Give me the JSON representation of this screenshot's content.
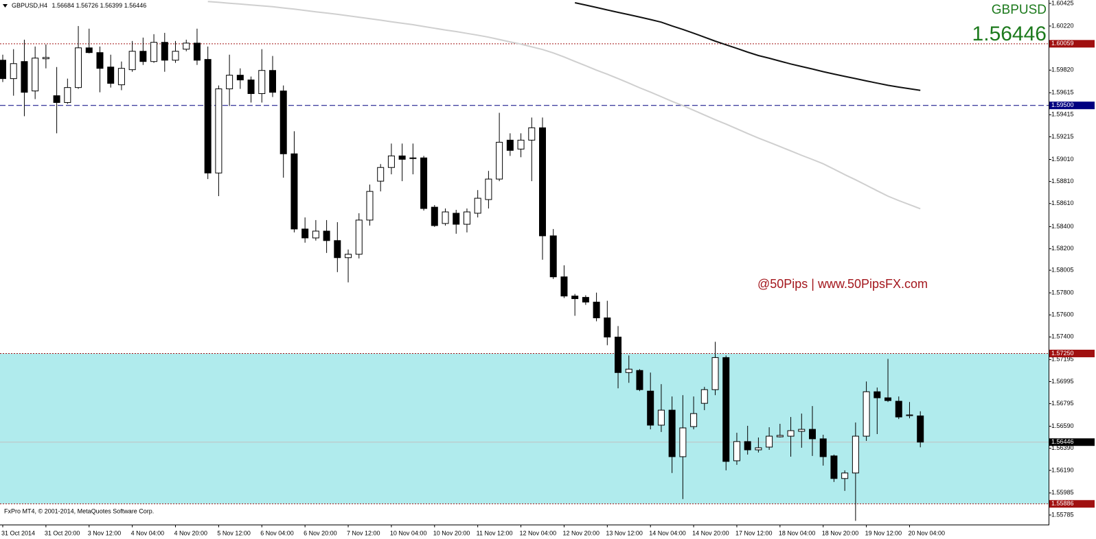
{
  "chart_data": {
    "type": "candlestick",
    "header": "GBPUSD,H4",
    "symbol": "GBPUSD",
    "annotation": "@50Pips | www.50PipsFX.com",
    "footer": "FxPro MT4, © 2001-2014, MetaQuotes Software Corp.",
    "categories": [
      "31 Oct 2014",
      null,
      null,
      null,
      "31 Oct 20:00",
      null,
      null,
      null,
      "3 Nov 12:00",
      null,
      null,
      null,
      "4 Nov 04:00",
      null,
      null,
      null,
      "4 Nov 20:00",
      null,
      null,
      null,
      "5 Nov 12:00",
      null,
      null,
      null,
      "6 Nov 04:00",
      null,
      null,
      null,
      "6 Nov 20:00",
      null,
      null,
      null,
      "7 Nov 12:00",
      null,
      null,
      null,
      "10 Nov 04:00",
      null,
      null,
      null,
      "10 Nov 20:00",
      null,
      null,
      null,
      "11 Nov 12:00",
      null,
      null,
      null,
      "12 Nov 04:00",
      null,
      null,
      null,
      "12 Nov 20:00",
      null,
      null,
      null,
      "13 Nov 12:00",
      null,
      null,
      null,
      "14 Nov 04:00",
      null,
      null,
      null,
      "14 Nov 20:00",
      null,
      null,
      null,
      "17 Nov 12:00",
      null,
      null,
      null,
      "18 Nov 04:00",
      null,
      null,
      null,
      "18 Nov 20:00",
      null,
      null,
      null,
      "19 Nov 12:00",
      null,
      null,
      null,
      "20 Nov 04:00",
      null
    ],
    "open": [
      1.5991,
      1.59743,
      1.59898,
      1.59631,
      1.59923,
      1.59588,
      1.59526,
      1.59662,
      1.60022,
      1.59979,
      1.59848,
      1.59687,
      1.59824,
      1.59991,
      1.59898,
      1.60072,
      1.5991,
      1.6001,
      1.60065,
      1.59917,
      1.58887,
      1.5965,
      1.59774,
      1.59731,
      1.59607,
      1.59817,
      1.59631,
      1.59061,
      1.58379,
      1.58298,
      1.5836,
      1.58274,
      1.58119,
      1.5815,
      1.5846,
      1.58813,
      1.58937,
      1.59042,
      1.59018,
      1.59024,
      1.58577,
      1.58429,
      1.58522,
      1.58422,
      1.58522,
      1.58646,
      1.58832,
      1.59185,
      1.59104,
      1.59185,
      1.59297,
      1.58317,
      1.57945,
      1.57771,
      1.57759,
      1.57716,
      1.57573,
      1.57399,
      1.57077,
      1.57096,
      1.56909,
      1.566,
      1.56736,
      1.56314,
      1.56587,
      1.56798,
      1.56922,
      1.57213,
      1.56277,
      1.56451,
      1.56376,
      1.56401,
      1.56494,
      1.565,
      1.56544,
      1.56562,
      1.56476,
      1.56321,
      1.56116,
      1.56166,
      1.565,
      1.56903,
      1.56848,
      1.56817,
      1.56686,
      1.56684
    ],
    "high": [
      1.5996,
      1.6001,
      1.60096,
      1.60034,
      1.60053,
      1.59848,
      1.59743,
      1.6022,
      1.60196,
      1.60034,
      1.5996,
      1.59898,
      1.60084,
      1.60115,
      1.60146,
      1.60158,
      1.60084,
      1.60096,
      1.60196,
      1.60034,
      1.59681,
      1.5996,
      1.59836,
      1.59762,
      1.6001,
      1.59948,
      1.59681,
      1.59266,
      1.58484,
      1.5846,
      1.5846,
      1.58441,
      1.58193,
      1.58522,
      1.58782,
      1.58968,
      1.59154,
      1.59154,
      1.59154,
      1.59042,
      1.58596,
      1.58565,
      1.58553,
      1.58565,
      1.58732,
      1.58906,
      1.59433,
      1.59247,
      1.59247,
      1.5939,
      1.5939,
      1.58379,
      1.5805,
      1.5779,
      1.57778,
      1.57802,
      1.57728,
      1.57499,
      1.57232,
      1.57108,
      1.57077,
      1.56972,
      1.5686,
      1.56872,
      1.5686,
      1.56947,
      1.57356,
      1.57232,
      1.56531,
      1.56594,
      1.56488,
      1.56581,
      1.56612,
      1.56674,
      1.56705,
      1.56773,
      1.56513,
      1.56333,
      1.5619,
      1.56624,
      1.56996,
      1.56941,
      1.57201,
      1.5686,
      1.5681,
      1.56726
    ],
    "low": [
      1.59712,
      1.59588,
      1.59402,
      1.59557,
      1.59836,
      1.59247,
      1.59514,
      1.5965,
      1.59972,
      1.59619,
      1.59662,
      1.59638,
      1.59805,
      1.59867,
      1.59886,
      1.59805,
      1.59886,
      1.59991,
      1.59867,
      1.58832,
      1.58677,
      1.59495,
      1.5965,
      1.59526,
      1.59526,
      1.59576,
      1.58844,
      1.58348,
      1.58255,
      1.58274,
      1.58162,
      1.57988,
      1.57895,
      1.58112,
      1.5841,
      1.5872,
      1.58875,
      1.58813,
      1.58875,
      1.58546,
      1.58398,
      1.5841,
      1.58336,
      1.58348,
      1.58484,
      1.58565,
      1.58813,
      1.59042,
      1.5903,
      1.58813,
      1.581,
      1.57926,
      1.57753,
      1.57592,
      1.57691,
      1.57542,
      1.57325,
      1.56934,
      1.56984,
      1.56909,
      1.56562,
      1.56538,
      1.56166,
      1.5593,
      1.56562,
      1.56736,
      1.56872,
      1.5619,
      1.5624,
      1.56333,
      1.56352,
      1.56376,
      1.56488,
      1.56314,
      1.56395,
      1.56321,
      1.56233,
      1.56085,
      1.56004,
      1.55732,
      1.56457,
      1.56519,
      1.5681,
      1.56655,
      1.56662,
      1.56399
    ],
    "close": [
      1.59743,
      1.59879,
      1.59619,
      1.59929,
      1.59935,
      1.59526,
      1.59662,
      1.60022,
      1.59979,
      1.59836,
      1.597,
      1.59836,
      1.59991,
      1.59898,
      1.60072,
      1.5991,
      1.59991,
      1.60065,
      1.5991,
      1.58887,
      1.5965,
      1.59774,
      1.59731,
      1.59607,
      1.59817,
      1.59619,
      1.59061,
      1.58379,
      1.58298,
      1.5836,
      1.58274,
      1.58119,
      1.5815,
      1.5846,
      1.5872,
      1.58937,
      1.59042,
      1.59011,
      1.59024,
      1.58565,
      1.5841,
      1.58534,
      1.58422,
      1.58534,
      1.58658,
      1.58832,
      1.59166,
      1.59092,
      1.59185,
      1.59297,
      1.58317,
      1.57945,
      1.57771,
      1.57747,
      1.57716,
      1.57573,
      1.57399,
      1.57077,
      1.57108,
      1.56922,
      1.566,
      1.56736,
      1.56314,
      1.56575,
      1.56705,
      1.56922,
      1.57213,
      1.56271,
      1.56451,
      1.56376,
      1.56395,
      1.565,
      1.56507,
      1.5655,
      1.56562,
      1.56476,
      1.56314,
      1.56116,
      1.56166,
      1.565,
      1.56903,
      1.56848,
      1.56823,
      1.56674,
      1.56693,
      1.56446
    ],
    "bull_color": "#ffffff",
    "bear_color": "#000000",
    "lines": [
      {
        "color": "#cfcfcf",
        "values": [
          null,
          null,
          null,
          null,
          null,
          null,
          null,
          null,
          null,
          null,
          null,
          null,
          null,
          null,
          null,
          null,
          null,
          null,
          null,
          1.60442,
          1.60435,
          1.60427,
          1.60419,
          1.60411,
          1.60403,
          1.60395,
          1.60384,
          1.60373,
          1.60361,
          1.60349,
          1.60338,
          1.60326,
          1.60313,
          1.603,
          1.60286,
          1.60273,
          1.60259,
          1.60245,
          1.60232,
          1.60216,
          1.602,
          1.60184,
          1.6017,
          1.60153,
          1.60137,
          1.60119,
          1.60098,
          1.60076,
          1.60056,
          1.60031,
          1.60007,
          1.59976,
          1.59939,
          1.59899,
          1.5986,
          1.5982,
          1.59783,
          1.59743,
          1.59702,
          1.5966,
          1.59621,
          1.59579,
          1.59537,
          1.59498,
          1.59456,
          1.59413,
          1.5937,
          1.59331,
          1.59288,
          1.59245,
          1.59204,
          1.59166,
          1.59127,
          1.59087,
          1.59047,
          1.5901,
          1.58971,
          1.58922,
          1.58872,
          1.58825,
          1.58776,
          1.58726,
          1.58677,
          1.58637,
          1.586,
          1.58563
        ]
      },
      {
        "color": "#111111",
        "values": [
          null,
          null,
          null,
          null,
          null,
          null,
          null,
          null,
          null,
          null,
          null,
          null,
          null,
          null,
          null,
          null,
          null,
          null,
          null,
          null,
          null,
          null,
          null,
          null,
          null,
          null,
          null,
          null,
          null,
          null,
          null,
          null,
          null,
          null,
          null,
          null,
          null,
          null,
          null,
          null,
          null,
          null,
          null,
          null,
          null,
          null,
          null,
          null,
          null,
          null,
          null,
          null,
          null,
          1.60431,
          1.6041,
          1.60388,
          1.60366,
          1.60344,
          1.60323,
          1.60301,
          1.60279,
          1.60255,
          1.60221,
          1.60189,
          1.60155,
          1.60119,
          1.60083,
          1.6005,
          1.60017,
          1.59983,
          1.59952,
          1.59928,
          1.59902,
          1.59876,
          1.59853,
          1.5983,
          1.59806,
          1.59784,
          1.59763,
          1.59743,
          1.59722,
          1.59702,
          1.59682,
          1.59666,
          1.59651,
          1.59636
        ]
      }
    ],
    "levels": [
      {
        "value": 1.60059,
        "color": "#a01010",
        "style": "dotted"
      },
      {
        "value": 1.595,
        "label": "1.59500",
        "color": "#000080",
        "style": "dashed"
      },
      {
        "value": 1.5725,
        "label": "1.57250",
        "color": "#a01010",
        "style": "dotted"
      },
      {
        "value": 1.55886,
        "color": "#a01010",
        "style": "dotted"
      }
    ],
    "zone": {
      "ylim": [
        1.5725,
        1.55886
      ],
      "color": "#b0ebed"
    },
    "ylim": [
      1.55698,
      1.60456
    ],
    "yticks": [
      1.60425,
      {
        "value": 1.6022,
        "label": "1.60220"
      },
      {
        "value": 1.5982,
        "label": "1.59820"
      },
      1.59615,
      1.59415,
      1.59215,
      {
        "value": 1.5901,
        "label": "1.59010"
      },
      {
        "value": 1.5881,
        "label": "1.58810"
      },
      {
        "value": 1.5861,
        "label": "1.58610"
      },
      {
        "value": 1.584,
        "label": "1.58400"
      },
      {
        "value": 1.582,
        "label": "1.58200"
      },
      1.58005,
      {
        "value": 1.578,
        "label": "1.57800"
      },
      {
        "value": 1.576,
        "label": "1.57600"
      },
      {
        "value": 1.574,
        "label": "1.57400"
      },
      1.57195,
      1.56995,
      1.56795,
      {
        "value": 1.5659,
        "label": "1.56590"
      },
      {
        "value": 1.5639,
        "label": "1.56390"
      },
      {
        "value": 1.5619,
        "label": "1.56190"
      },
      1.55985,
      1.55785
    ],
    "grid": false
  }
}
